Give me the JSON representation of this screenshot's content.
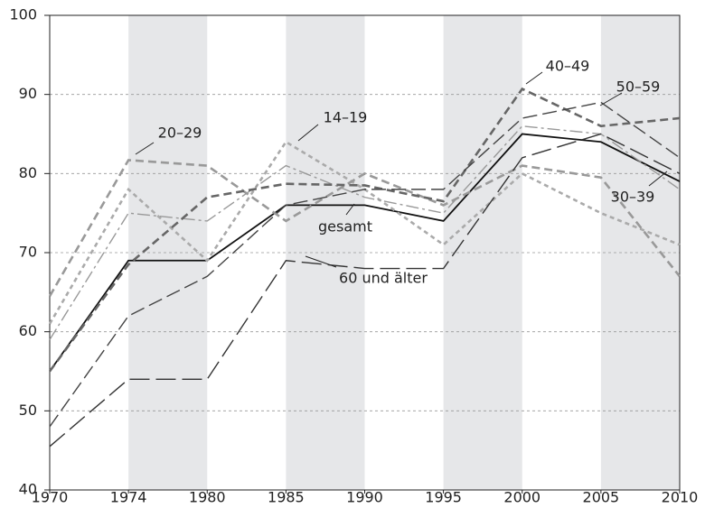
{
  "chart_data": {
    "type": "line",
    "categories": [
      "1970",
      "1974",
      "1980",
      "1985",
      "1990",
      "1995",
      "2000",
      "2005",
      "2010"
    ],
    "ylim": [
      40,
      100
    ],
    "yticks": [
      40,
      50,
      60,
      70,
      80,
      90,
      100
    ],
    "grid": true,
    "series": [
      {
        "name": "gesamt",
        "color": "#111111",
        "dash": "none",
        "width": 1.8,
        "values": [
          55,
          69,
          69,
          76,
          76,
          74,
          85,
          84,
          79
        ]
      },
      {
        "name": "14–19",
        "color": "#aaaaaa",
        "dash": "5 4",
        "width": 2.6,
        "values": [
          61,
          78,
          69,
          84,
          78,
          71,
          80,
          75,
          71
        ]
      },
      {
        "name": "20–29",
        "color": "#999999",
        "dash": "9 5",
        "width": 2.6,
        "values": [
          64.5,
          81.7,
          81,
          74,
          80,
          76,
          81,
          79.5,
          67
        ]
      },
      {
        "name": "30–39",
        "color": "#999999",
        "dash": "14 4 3 4",
        "width": 1.4,
        "values": [
          59,
          75,
          74,
          81,
          77,
          75,
          86,
          85,
          78
        ]
      },
      {
        "name": "40–49",
        "color": "#666666",
        "dash": "9 5",
        "width": 2.6,
        "values": [
          55,
          68.5,
          77,
          78.7,
          78.5,
          76.5,
          90.7,
          86,
          87
        ]
      },
      {
        "name": "50–59",
        "color": "#444444",
        "dash": "16 6",
        "width": 1.4,
        "values": [
          48,
          62,
          67,
          76,
          78,
          78,
          87,
          89,
          82
        ]
      },
      {
        "name": "60 und älter",
        "color": "#333333",
        "dash": "22 7",
        "width": 1.4,
        "values": [
          45.5,
          54,
          54,
          69,
          68,
          68,
          82,
          85,
          80
        ]
      }
    ]
  }
}
